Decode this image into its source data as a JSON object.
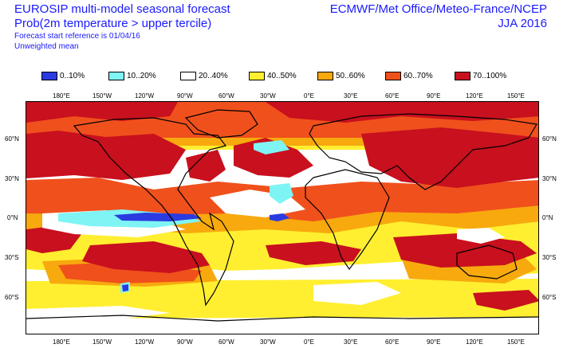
{
  "header": {
    "title": "EUROSIP multi-model seasonal forecast",
    "subtitle": "Prob(2m temperature > upper tercile)",
    "start_ref": "Forecast start reference is 01/04/16",
    "weighting": "Unweighted mean",
    "centres": "ECMWF/Met Office/Meteo-France/NCEP",
    "season": "JJA 2016"
  },
  "legend": {
    "items": [
      {
        "label": "0..10%",
        "color": "#2b3be0"
      },
      {
        "label": "10..20%",
        "color": "#7ff4f4"
      },
      {
        "label": "20..40%",
        "color": "#ffffff"
      },
      {
        "label": "40..50%",
        "color": "#ffef30"
      },
      {
        "label": "50..60%",
        "color": "#f7a90e"
      },
      {
        "label": "60..70%",
        "color": "#f0501c"
      },
      {
        "label": "70..100%",
        "color": "#c8101e"
      }
    ]
  },
  "axes": {
    "lon_labels": [
      "180°E",
      "150°W",
      "120°W",
      "90°W",
      "60°W",
      "30°W",
      "0°E",
      "30°E",
      "60°E",
      "90°E",
      "120°E",
      "150°E"
    ],
    "lat_labels": [
      "60°N",
      "30°N",
      "0°N",
      "30°S",
      "60°S"
    ]
  },
  "colors": {
    "title": "#1a1aff",
    "coastline": "#000000"
  }
}
